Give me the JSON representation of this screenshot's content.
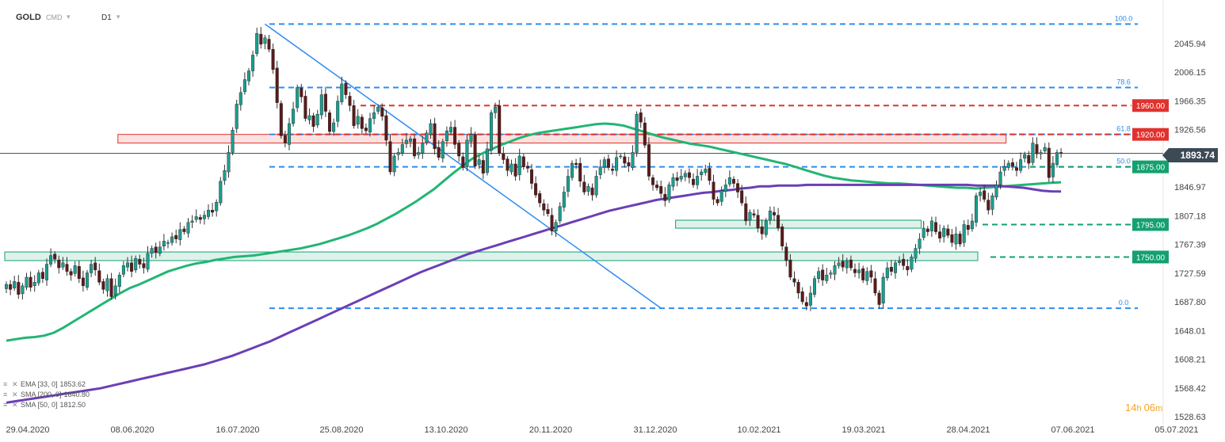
{
  "header": {
    "symbol": "GOLD",
    "market": "CMD",
    "timeframe": "D1"
  },
  "current_price": "1893.74",
  "countdown": {
    "hours": "14",
    "minutes": "06"
  },
  "indicators": [
    {
      "label": "EMA [33, 0]",
      "value": "1853.62",
      "color": "#22b573"
    },
    {
      "label": "SMA [200, 0]",
      "value": "1840.80",
      "color": "#6a3fb5"
    },
    {
      "label": "SMA [50, 0]",
      "value": "1812.50",
      "color": "#2b7bd6"
    }
  ],
  "colors": {
    "bull": "#1a9e8f",
    "bear": "#5a1a1a",
    "fib": "#2d8cf0",
    "red": "#e0322e",
    "green": "#14a06f",
    "ema": "#22b573",
    "sma200": "#6a3fb5",
    "trend": "#2d8cf0"
  },
  "chart_data": {
    "type": "candlestick",
    "title": "",
    "y_ticks": [
      2045.94,
      2006.15,
      1966.35,
      1926.56,
      1886.77,
      1846.97,
      1807.18,
      1767.39,
      1727.59,
      1687.8,
      1648.01,
      1608.21,
      1568.42,
      1528.63
    ],
    "y_tick_labels": [
      "2045.94",
      "2006.15",
      "1966.35",
      "1926.56",
      "1886.77",
      "1846.97",
      "1807.18",
      "1767.39",
      "1727.59",
      "1687.80",
      "1648.01",
      "1608.21",
      "1568.42",
      "1528.63"
    ],
    "ylim": [
      1520,
      2080
    ],
    "x_ticks": [
      "29.04.2020",
      "08.06.2020",
      "16.07.2020",
      "25.08.2020",
      "13.10.2020",
      "20.11.2020",
      "31.12.2020",
      "10.02.2021",
      "19.03.2021",
      "28.04.2021",
      "07.06.2021",
      "05.07.2021"
    ],
    "fib_levels": [
      {
        "label": "100.0",
        "value": 2073
      },
      {
        "label": "78.6",
        "value": 1985
      },
      {
        "label": "61.8",
        "value": 1920
      },
      {
        "label": "50.0",
        "value": 1875
      },
      {
        "label": "0.0",
        "value": 1679
      }
    ],
    "horizontal_levels": [
      {
        "label": "1960.00",
        "value": 1960,
        "color": "red"
      },
      {
        "label": "1920.00",
        "value": 1920,
        "color": "red"
      },
      {
        "label": "1875.00",
        "value": 1875,
        "color": "green"
      },
      {
        "label": "1795.00",
        "value": 1795,
        "color": "green"
      },
      {
        "label": "1750.00",
        "value": 1750,
        "color": "green"
      }
    ],
    "zones": [
      {
        "from_bar": 28,
        "to_bar": 247,
        "y1": 1908,
        "y2": 1920,
        "color": "red"
      },
      {
        "from_bar": 166,
        "to_bar": 226,
        "y1": 1790,
        "y2": 1801,
        "color": "green"
      },
      {
        "from_bar": 0,
        "to_bar": 240,
        "y1": 1745,
        "y2": 1757,
        "color": "green"
      }
    ],
    "trendline": {
      "from_bar": 64,
      "from_value": 2073,
      "to_bar": 162,
      "to_value": 1679
    },
    "closes": [
      1712,
      1705,
      1716,
      1698,
      1710,
      1722,
      1708,
      1715,
      1728,
      1720,
      1740,
      1752,
      1747,
      1735,
      1742,
      1730,
      1725,
      1738,
      1720,
      1710,
      1728,
      1740,
      1732,
      1715,
      1705,
      1720,
      1695,
      1710,
      1725,
      1738,
      1742,
      1730,
      1748,
      1740,
      1735,
      1755,
      1762,
      1756,
      1764,
      1772,
      1770,
      1778,
      1775,
      1788,
      1785,
      1798,
      1800,
      1806,
      1802,
      1808,
      1815,
      1812,
      1826,
      1855,
      1870,
      1895,
      1926,
      1962,
      1978,
      1996,
      2008,
      2030,
      2060,
      2045,
      2054,
      2038,
      2010,
      1964,
      1918,
      1908,
      1935,
      1955,
      1985,
      1972,
      1942,
      1946,
      1931,
      1948,
      1975,
      1952,
      1924,
      1936,
      1966,
      1990,
      1975,
      1960,
      1932,
      1945,
      1928,
      1925,
      1942,
      1950,
      1958,
      1945,
      1912,
      1868,
      1890,
      1895,
      1906,
      1912,
      1914,
      1890,
      1895,
      1908,
      1922,
      1935,
      1900,
      1888,
      1910,
      1925,
      1930,
      1906,
      1890,
      1874,
      1912,
      1920,
      1876,
      1885,
      1866,
      1900,
      1950,
      1958,
      1894,
      1885,
      1870,
      1879,
      1862,
      1890,
      1875,
      1873,
      1852,
      1836,
      1825,
      1815,
      1810,
      1786,
      1798,
      1820,
      1840,
      1862,
      1880,
      1878,
      1855,
      1840,
      1848,
      1836,
      1862,
      1875,
      1885,
      1874,
      1870,
      1888,
      1890,
      1880,
      1876,
      1895,
      1948,
      1937,
      1905,
      1862,
      1850,
      1846,
      1838,
      1828,
      1850,
      1860,
      1856,
      1862,
      1866,
      1860,
      1850,
      1862,
      1868,
      1872,
      1856,
      1830,
      1825,
      1842,
      1850,
      1860,
      1852,
      1840,
      1825,
      1800,
      1812,
      1808,
      1790,
      1782,
      1800,
      1814,
      1808,
      1790,
      1765,
      1745,
      1722,
      1715,
      1700,
      1688,
      1682,
      1700,
      1720,
      1730,
      1718,
      1725,
      1728,
      1738,
      1742,
      1736,
      1745,
      1735,
      1728,
      1732,
      1718,
      1730,
      1722,
      1700,
      1684,
      1722,
      1735,
      1730,
      1742,
      1745,
      1738,
      1732,
      1750,
      1762,
      1775,
      1790,
      1785,
      1800,
      1785,
      1776,
      1790,
      1780,
      1770,
      1782,
      1768,
      1795,
      1788,
      1800,
      1835,
      1840,
      1830,
      1815,
      1835,
      1850,
      1868,
      1875,
      1880,
      1876,
      1870,
      1885,
      1892,
      1880,
      1908,
      1893,
      1895,
      1902,
      1860,
      1880,
      1895,
      1893.74
    ],
    "ema33": [
      1634,
      1636,
      1638,
      1639,
      1641,
      1645,
      1652,
      1660,
      1668,
      1676,
      1684,
      1692,
      1700,
      1707,
      1712,
      1718,
      1724,
      1730,
      1734,
      1738,
      1741,
      1743,
      1746,
      1748,
      1750,
      1751,
      1752,
      1754,
      1756,
      1758,
      1760,
      1762,
      1765,
      1768,
      1772,
      1776,
      1780,
      1785,
      1790,
      1796,
      1803,
      1810,
      1818,
      1826,
      1835,
      1844,
      1855,
      1866,
      1876,
      1886,
      1893,
      1899,
      1905,
      1910,
      1915,
      1919,
      1922,
      1924,
      1926,
      1928,
      1930,
      1932,
      1934,
      1935,
      1934,
      1932,
      1928,
      1924,
      1920,
      1916,
      1913,
      1910,
      1907,
      1905,
      1903,
      1900,
      1897,
      1894,
      1891,
      1888,
      1885,
      1882,
      1879,
      1875,
      1871,
      1867,
      1863,
      1860,
      1858,
      1856,
      1855,
      1854,
      1853,
      1852,
      1852,
      1851,
      1850,
      1849,
      1848,
      1847,
      1846,
      1846,
      1845,
      1846,
      1847,
      1848,
      1849,
      1850,
      1851,
      1852,
      1853,
      1853.62
    ],
    "sma200": [
      1548,
      1550,
      1552,
      1554,
      1556,
      1558,
      1560,
      1562,
      1564,
      1566,
      1568,
      1571,
      1574,
      1577,
      1580,
      1583,
      1586,
      1589,
      1592,
      1595,
      1598,
      1601,
      1605,
      1609,
      1613,
      1618,
      1623,
      1628,
      1633,
      1639,
      1645,
      1651,
      1657,
      1663,
      1669,
      1675,
      1681,
      1687,
      1693,
      1699,
      1705,
      1711,
      1717,
      1723,
      1729,
      1734,
      1739,
      1744,
      1749,
      1754,
      1758,
      1762,
      1766,
      1770,
      1774,
      1778,
      1782,
      1786,
      1790,
      1794,
      1798,
      1802,
      1806,
      1810,
      1814,
      1817,
      1820,
      1823,
      1826,
      1829,
      1831,
      1833,
      1835,
      1837,
      1839,
      1840,
      1842,
      1843,
      1845,
      1846,
      1848,
      1848,
      1849,
      1849,
      1849,
      1850,
      1850,
      1850,
      1850,
      1850,
      1850,
      1850,
      1850,
      1850,
      1850,
      1850,
      1850,
      1850,
      1850,
      1850,
      1850,
      1850,
      1850,
      1849,
      1849,
      1849,
      1848,
      1847,
      1846,
      1844,
      1842,
      1841,
      1840.8
    ]
  }
}
